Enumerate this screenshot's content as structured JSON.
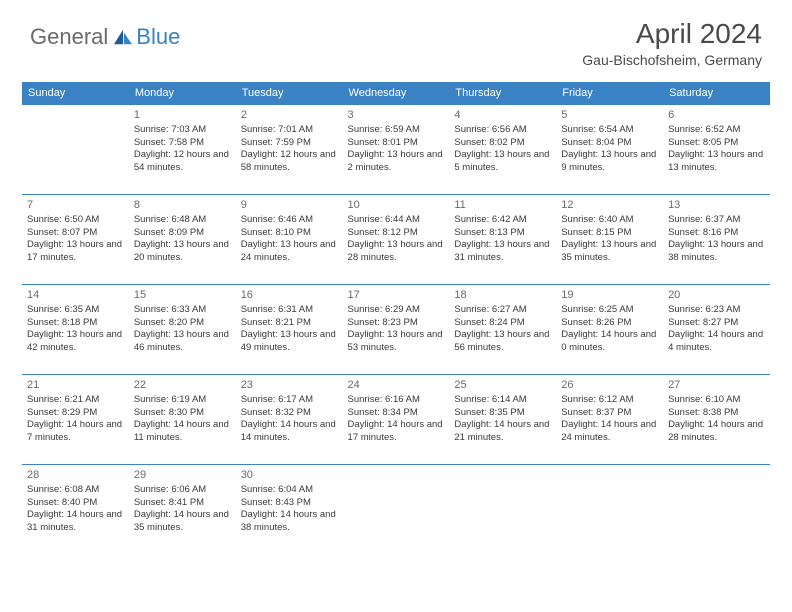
{
  "colors": {
    "header_bg": "#3a82c4",
    "header_text": "#ffffff",
    "row_divider": "#3a82c4",
    "body_text": "#3a3a3a",
    "daynum_text": "#6a6a6a",
    "logo_gray": "#6a6a6a",
    "logo_blue": "#3a82c4",
    "page_bg": "#ffffff"
  },
  "typography": {
    "title_fontsize": 28,
    "location_fontsize": 14,
    "dayheader_fontsize": 11,
    "daynum_fontsize": 11,
    "body_fontsize": 9.5
  },
  "logo": {
    "part1": "General",
    "part2": "Blue"
  },
  "title": "April 2024",
  "location": "Gau-Bischofsheim, Germany",
  "day_names": [
    "Sunday",
    "Monday",
    "Tuesday",
    "Wednesday",
    "Thursday",
    "Friday",
    "Saturday"
  ],
  "weeks": [
    [
      {
        "n": "",
        "sr": "",
        "ss": "",
        "dl": ""
      },
      {
        "n": "1",
        "sr": "7:03 AM",
        "ss": "7:58 PM",
        "dl": "12 hours and 54 minutes."
      },
      {
        "n": "2",
        "sr": "7:01 AM",
        "ss": "7:59 PM",
        "dl": "12 hours and 58 minutes."
      },
      {
        "n": "3",
        "sr": "6:59 AM",
        "ss": "8:01 PM",
        "dl": "13 hours and 2 minutes."
      },
      {
        "n": "4",
        "sr": "6:56 AM",
        "ss": "8:02 PM",
        "dl": "13 hours and 5 minutes."
      },
      {
        "n": "5",
        "sr": "6:54 AM",
        "ss": "8:04 PM",
        "dl": "13 hours and 9 minutes."
      },
      {
        "n": "6",
        "sr": "6:52 AM",
        "ss": "8:05 PM",
        "dl": "13 hours and 13 minutes."
      }
    ],
    [
      {
        "n": "7",
        "sr": "6:50 AM",
        "ss": "8:07 PM",
        "dl": "13 hours and 17 minutes."
      },
      {
        "n": "8",
        "sr": "6:48 AM",
        "ss": "8:09 PM",
        "dl": "13 hours and 20 minutes."
      },
      {
        "n": "9",
        "sr": "6:46 AM",
        "ss": "8:10 PM",
        "dl": "13 hours and 24 minutes."
      },
      {
        "n": "10",
        "sr": "6:44 AM",
        "ss": "8:12 PM",
        "dl": "13 hours and 28 minutes."
      },
      {
        "n": "11",
        "sr": "6:42 AM",
        "ss": "8:13 PM",
        "dl": "13 hours and 31 minutes."
      },
      {
        "n": "12",
        "sr": "6:40 AM",
        "ss": "8:15 PM",
        "dl": "13 hours and 35 minutes."
      },
      {
        "n": "13",
        "sr": "6:37 AM",
        "ss": "8:16 PM",
        "dl": "13 hours and 38 minutes."
      }
    ],
    [
      {
        "n": "14",
        "sr": "6:35 AM",
        "ss": "8:18 PM",
        "dl": "13 hours and 42 minutes."
      },
      {
        "n": "15",
        "sr": "6:33 AM",
        "ss": "8:20 PM",
        "dl": "13 hours and 46 minutes."
      },
      {
        "n": "16",
        "sr": "6:31 AM",
        "ss": "8:21 PM",
        "dl": "13 hours and 49 minutes."
      },
      {
        "n": "17",
        "sr": "6:29 AM",
        "ss": "8:23 PM",
        "dl": "13 hours and 53 minutes."
      },
      {
        "n": "18",
        "sr": "6:27 AM",
        "ss": "8:24 PM",
        "dl": "13 hours and 56 minutes."
      },
      {
        "n": "19",
        "sr": "6:25 AM",
        "ss": "8:26 PM",
        "dl": "14 hours and 0 minutes."
      },
      {
        "n": "20",
        "sr": "6:23 AM",
        "ss": "8:27 PM",
        "dl": "14 hours and 4 minutes."
      }
    ],
    [
      {
        "n": "21",
        "sr": "6:21 AM",
        "ss": "8:29 PM",
        "dl": "14 hours and 7 minutes."
      },
      {
        "n": "22",
        "sr": "6:19 AM",
        "ss": "8:30 PM",
        "dl": "14 hours and 11 minutes."
      },
      {
        "n": "23",
        "sr": "6:17 AM",
        "ss": "8:32 PM",
        "dl": "14 hours and 14 minutes."
      },
      {
        "n": "24",
        "sr": "6:16 AM",
        "ss": "8:34 PM",
        "dl": "14 hours and 17 minutes."
      },
      {
        "n": "25",
        "sr": "6:14 AM",
        "ss": "8:35 PM",
        "dl": "14 hours and 21 minutes."
      },
      {
        "n": "26",
        "sr": "6:12 AM",
        "ss": "8:37 PM",
        "dl": "14 hours and 24 minutes."
      },
      {
        "n": "27",
        "sr": "6:10 AM",
        "ss": "8:38 PM",
        "dl": "14 hours and 28 minutes."
      }
    ],
    [
      {
        "n": "28",
        "sr": "6:08 AM",
        "ss": "8:40 PM",
        "dl": "14 hours and 31 minutes."
      },
      {
        "n": "29",
        "sr": "6:06 AM",
        "ss": "8:41 PM",
        "dl": "14 hours and 35 minutes."
      },
      {
        "n": "30",
        "sr": "6:04 AM",
        "ss": "8:43 PM",
        "dl": "14 hours and 38 minutes."
      },
      {
        "n": "",
        "sr": "",
        "ss": "",
        "dl": ""
      },
      {
        "n": "",
        "sr": "",
        "ss": "",
        "dl": ""
      },
      {
        "n": "",
        "sr": "",
        "ss": "",
        "dl": ""
      },
      {
        "n": "",
        "sr": "",
        "ss": "",
        "dl": ""
      }
    ]
  ],
  "labels": {
    "sunrise_prefix": "Sunrise: ",
    "sunset_prefix": "Sunset: ",
    "daylight_prefix": "Daylight: "
  }
}
